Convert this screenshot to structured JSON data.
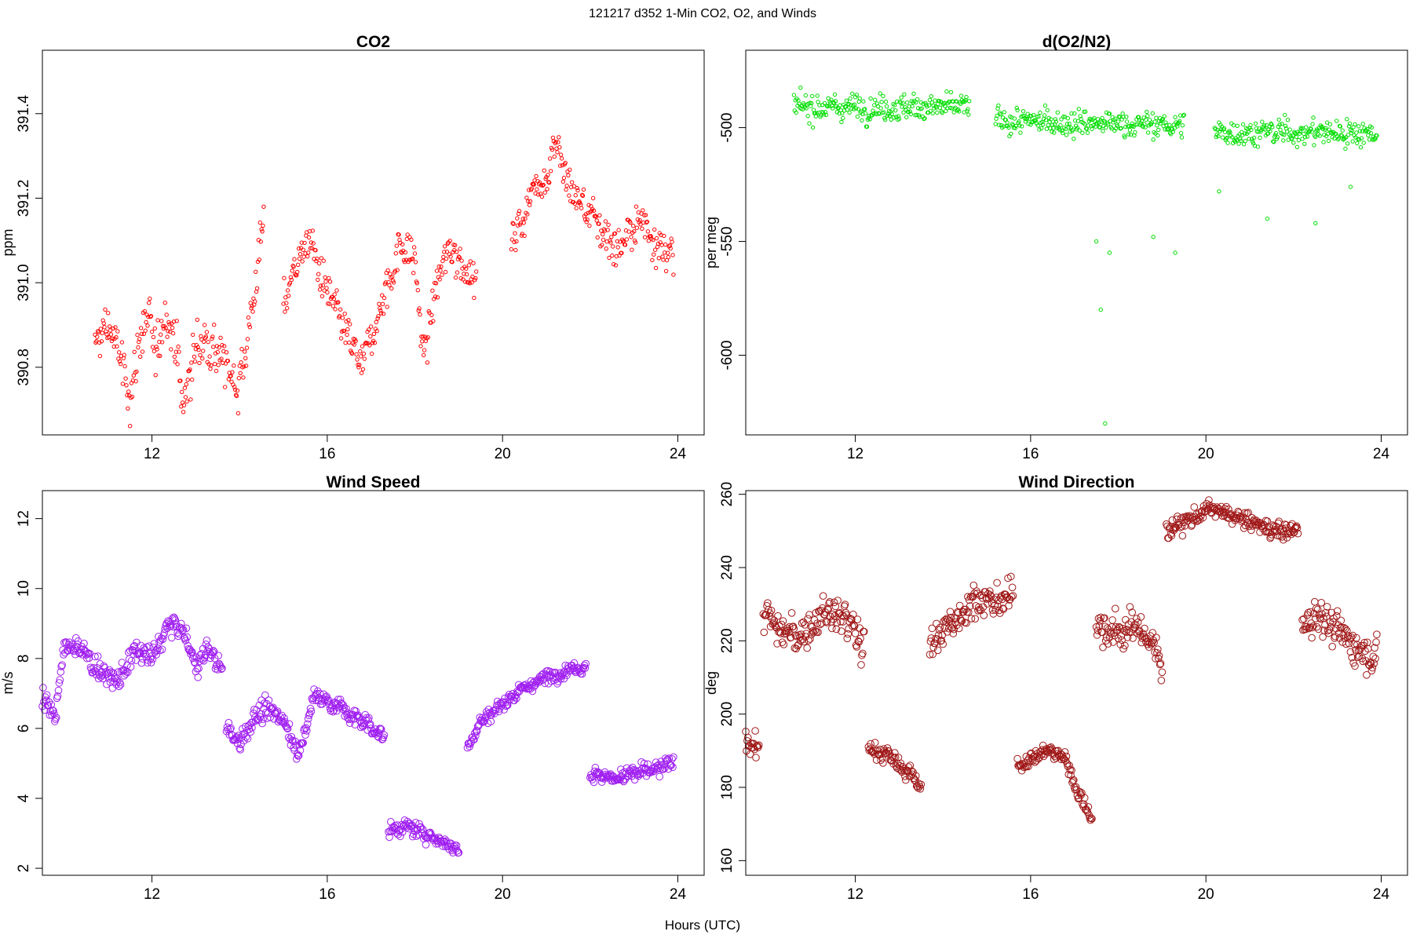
{
  "figure": {
    "title": "121217   d352   1-Min CO2, O2, and Winds",
    "xlabel": "Hours (UTC)"
  },
  "chart_data": [
    {
      "id": "co2",
      "type": "scatter",
      "title": "CO2",
      "ylabel": "ppm",
      "color": "#ff0000",
      "marker_size": "small",
      "xlim": [
        9.5,
        24.6
      ],
      "ylim": [
        390.64,
        391.55
      ],
      "x_ticks": [
        12,
        16,
        20,
        24
      ],
      "y_ticks": [
        390.8,
        391.0,
        391.2,
        391.4
      ],
      "y_tick_labels": [
        "390.8",
        "391.0",
        "391.2",
        "391.4"
      ],
      "grid": false,
      "segments": [
        {
          "x": [
            10.7,
            11.0,
            11.3,
            11.5,
            11.7,
            11.9,
            12.1,
            12.3,
            12.55,
            12.7,
            12.85,
            13.0,
            13.3,
            13.6,
            13.8,
            14.0,
            14.3,
            14.55
          ],
          "y": [
            390.85,
            390.9,
            390.82,
            390.72,
            390.86,
            390.92,
            390.82,
            390.94,
            390.86,
            390.7,
            390.78,
            390.85,
            390.86,
            390.82,
            390.78,
            390.76,
            390.95,
            391.15
          ],
          "spread": 0.07
        },
        {
          "x": [
            15.0,
            15.3,
            15.6,
            15.9,
            16.2,
            16.5,
            16.8,
            17.1,
            17.4,
            17.7,
            18.0,
            18.2,
            18.5,
            18.8,
            19.1,
            19.4
          ],
          "y": [
            390.95,
            391.05,
            391.1,
            391.0,
            390.93,
            390.86,
            390.8,
            390.9,
            391.0,
            391.1,
            391.05,
            390.82,
            391.0,
            391.08,
            391.05,
            391.0
          ],
          "spread": 0.06
        },
        {
          "x": [
            20.2,
            20.5,
            20.8,
            21.0,
            21.2,
            21.4,
            21.7,
            22.0,
            22.3,
            22.6,
            22.9,
            23.2,
            23.5,
            23.9
          ],
          "y": [
            391.1,
            391.16,
            391.25,
            391.24,
            391.35,
            391.25,
            391.2,
            391.16,
            391.12,
            391.08,
            391.12,
            391.15,
            391.1,
            391.06
          ],
          "spread": 0.06
        }
      ]
    },
    {
      "id": "o2",
      "type": "scatter",
      "title": "d(O2/N2)",
      "ylabel": "per meg",
      "color": "#00dd00",
      "marker_size": "small",
      "xlim": [
        9.5,
        24.6
      ],
      "ylim": [
        -635,
        -466
      ],
      "x_ticks": [
        12,
        16,
        20,
        24
      ],
      "y_ticks": [
        -600,
        -550,
        -500
      ],
      "y_tick_labels": [
        "-600",
        "-550",
        "-500"
      ],
      "grid": false,
      "segments": [
        {
          "x": [
            10.6,
            14.6
          ],
          "y": [
            -491,
            -491
          ],
          "spread": 7
        },
        {
          "x": [
            15.2,
            19.5
          ],
          "y": [
            -497,
            -499
          ],
          "spread": 7
        },
        {
          "x": [
            20.2,
            23.9
          ],
          "y": [
            -502,
            -502
          ],
          "spread": 7
        }
      ],
      "outliers": {
        "x": [
          17.7,
          17.6,
          17.8,
          17.5,
          18.8,
          19.3,
          21.4,
          22.5,
          23.3,
          20.3
        ],
        "y": [
          -630,
          -580,
          -555,
          -550,
          -548,
          -555,
          -540,
          -542,
          -526,
          -528
        ]
      }
    },
    {
      "id": "wspd",
      "type": "scatter",
      "title": "Wind Speed",
      "ylabel": "m/s",
      "color": "#a020f0",
      "marker_size": "large",
      "xlim": [
        9.5,
        24.6
      ],
      "ylim": [
        1.8,
        12.8
      ],
      "x_ticks": [
        12,
        16,
        20,
        24
      ],
      "y_ticks": [
        2,
        4,
        6,
        8,
        10,
        12
      ],
      "y_tick_labels": [
        "2",
        "4",
        "6",
        "8",
        "10",
        "12"
      ],
      "grid": false,
      "segments": [
        {
          "x": [
            9.5,
            9.8,
            10.0,
            10.3,
            10.6,
            10.9,
            11.2,
            11.6,
            12.0,
            12.4,
            12.7,
            13.0,
            13.3,
            13.6
          ],
          "y": [
            6.8,
            6.4,
            8.3,
            8.4,
            7.9,
            7.6,
            7.3,
            8.2,
            8.0,
            9.0,
            8.8,
            7.8,
            8.3,
            7.6
          ],
          "spread": 0.4
        },
        {
          "x": [
            13.7,
            14.0,
            14.3,
            14.6,
            15.0,
            15.3,
            15.5,
            15.7,
            16.0,
            16.3,
            16.6,
            17.0,
            17.3
          ],
          "y": [
            6.0,
            5.6,
            6.3,
            6.5,
            6.3,
            5.4,
            5.8,
            7.0,
            6.8,
            6.6,
            6.3,
            6.1,
            5.7
          ],
          "spread": 0.35
        },
        {
          "x": [
            17.4,
            17.8,
            18.2,
            18.6,
            19.0
          ],
          "y": [
            3.1,
            3.2,
            3.0,
            2.8,
            2.5
          ],
          "spread": 0.25
        },
        {
          "x": [
            19.2,
            19.5,
            19.9,
            20.3,
            20.7,
            21.1,
            21.5,
            21.9
          ],
          "y": [
            5.5,
            6.2,
            6.6,
            7.0,
            7.3,
            7.5,
            7.7,
            7.8
          ],
          "spread": 0.25
        },
        {
          "x": [
            22.0,
            22.5,
            23.0,
            23.5,
            23.9
          ],
          "y": [
            4.7,
            4.6,
            4.7,
            4.8,
            5.0
          ],
          "spread": 0.3
        }
      ]
    },
    {
      "id": "wdir",
      "type": "scatter",
      "title": "Wind Direction",
      "ylabel": "deg",
      "color": "#a01818",
      "marker_size": "large",
      "xlim": [
        9.5,
        24.6
      ],
      "ylim": [
        156,
        261
      ],
      "x_ticks": [
        12,
        16,
        20,
        24
      ],
      "y_ticks": [
        160,
        180,
        200,
        220,
        240,
        260
      ],
      "y_tick_labels": [
        "160",
        "180",
        "200",
        "220",
        "240",
        "260"
      ],
      "grid": false,
      "segments": [
        {
          "x": [
            9.5,
            9.8
          ],
          "y": [
            194,
            190
          ],
          "spread": 4
        },
        {
          "x": [
            9.9,
            10.3,
            10.8,
            11.3,
            11.8,
            12.2
          ],
          "y": [
            228,
            222,
            222,
            228,
            226,
            218
          ],
          "spread": 6
        },
        {
          "x": [
            12.3,
            12.7,
            13.1,
            13.5
          ],
          "y": [
            191,
            189,
            185,
            181
          ],
          "spread": 3
        },
        {
          "x": [
            13.7,
            14.2,
            14.7,
            15.2,
            15.6
          ],
          "y": [
            218,
            225,
            232,
            230,
            232
          ],
          "spread": 6
        },
        {
          "x": [
            15.7,
            16.0,
            16.4,
            16.8,
            17.1,
            17.4
          ],
          "y": [
            186,
            188,
            190,
            188,
            178,
            172
          ],
          "spread": 2.5
        },
        {
          "x": [
            17.5,
            18.0,
            18.5,
            19.0
          ],
          "y": [
            224,
            222,
            224,
            214
          ],
          "spread": 6
        },
        {
          "x": [
            19.1,
            19.6,
            20.1,
            20.6,
            21.1,
            21.6,
            22.1
          ],
          "y": [
            250,
            253,
            256,
            254,
            252,
            250,
            250
          ],
          "spread": 3
        },
        {
          "x": [
            22.2,
            22.6,
            23.0,
            23.5,
            23.9
          ],
          "y": [
            224,
            228,
            222,
            218,
            216
          ],
          "spread": 6
        }
      ]
    }
  ]
}
